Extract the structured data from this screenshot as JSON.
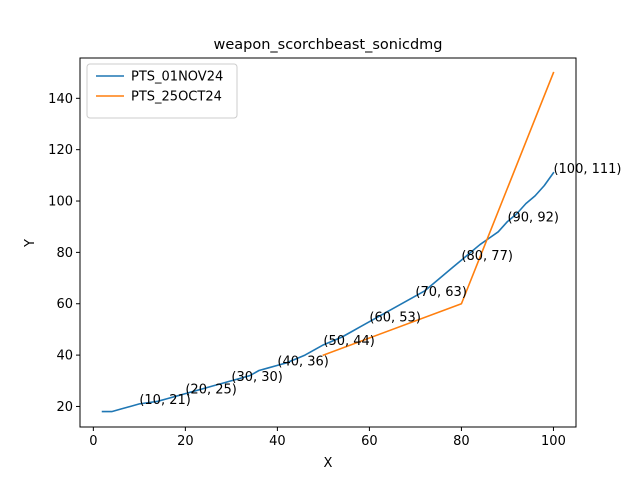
{
  "chart_data": {
    "type": "line",
    "title": "weapon_scorchbeast_sonicdmg",
    "xlabel": "X",
    "ylabel": "Y",
    "xlim": [
      -2.9,
      104.9
    ],
    "ylim": [
      12.0,
      155.7
    ],
    "xticks": [
      0,
      20,
      40,
      60,
      80,
      100
    ],
    "yticks": [
      20,
      40,
      60,
      80,
      100,
      120,
      140
    ],
    "grid": false,
    "legend_position": "top-left",
    "series": [
      {
        "name": "PTS_01NOV24",
        "color": "#1f77b4",
        "x": [
          2,
          4,
          6,
          8,
          10,
          12,
          14,
          16,
          18,
          20,
          22,
          24,
          26,
          28,
          30,
          32,
          34,
          36,
          38,
          40,
          42,
          44,
          46,
          48,
          50,
          52,
          54,
          56,
          58,
          60,
          62,
          64,
          66,
          68,
          70,
          72,
          74,
          76,
          78,
          80,
          82,
          84,
          86,
          88,
          90,
          92,
          94,
          96,
          98,
          100
        ],
        "y": [
          18,
          18,
          19,
          20,
          21,
          21.5,
          22,
          23,
          24,
          25,
          26,
          27,
          28,
          29,
          30,
          31,
          32,
          34,
          35,
          36,
          37,
          38.5,
          40,
          42,
          44,
          45.5,
          47,
          49,
          51,
          53,
          55,
          57,
          59,
          61,
          63,
          65,
          68,
          71,
          74,
          77,
          80,
          83,
          85.5,
          88,
          92,
          95,
          99,
          102,
          106,
          111
        ]
      },
      {
        "name": "PTS_25OCT24",
        "color": "#ff7f0e",
        "x": [
          50,
          80,
          100
        ],
        "y": [
          40,
          60,
          150
        ]
      }
    ],
    "annotations": [
      {
        "label": "(10, 21)",
        "x": 10,
        "y": 21
      },
      {
        "label": "(20, 25)",
        "x": 20,
        "y": 25
      },
      {
        "label": "(30, 30)",
        "x": 30,
        "y": 30
      },
      {
        "label": "(40, 36)",
        "x": 40,
        "y": 36
      },
      {
        "label": "(50, 44)",
        "x": 50,
        "y": 44
      },
      {
        "label": "(60, 53)",
        "x": 60,
        "y": 53
      },
      {
        "label": "(70, 63)",
        "x": 70,
        "y": 63
      },
      {
        "label": "(80, 77)",
        "x": 80,
        "y": 77
      },
      {
        "label": "(90, 92)",
        "x": 90,
        "y": 92
      },
      {
        "label": "(100, 111)",
        "x": 100,
        "y": 111
      }
    ]
  }
}
